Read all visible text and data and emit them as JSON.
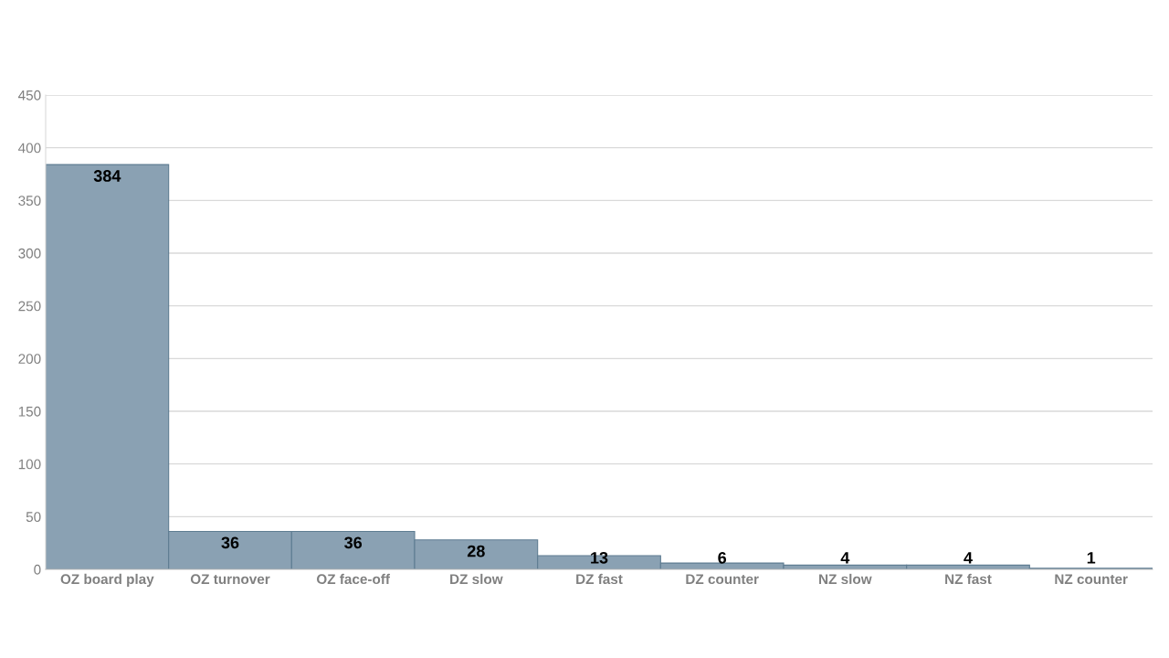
{
  "chart_data": {
    "type": "bar",
    "categories": [
      "OZ board play",
      "OZ turnover",
      "OZ face-off",
      "DZ slow",
      "DZ fast",
      "DZ counter",
      "NZ slow",
      "NZ fast",
      "NZ counter"
    ],
    "values": [
      384,
      36,
      36,
      28,
      13,
      6,
      4,
      4,
      1
    ],
    "color": "#8aa1b3",
    "ylim": [
      0,
      450
    ],
    "yticks": [
      0,
      50,
      100,
      150,
      200,
      250,
      300,
      350,
      400,
      450
    ],
    "grid": "y",
    "data_labels": true
  }
}
